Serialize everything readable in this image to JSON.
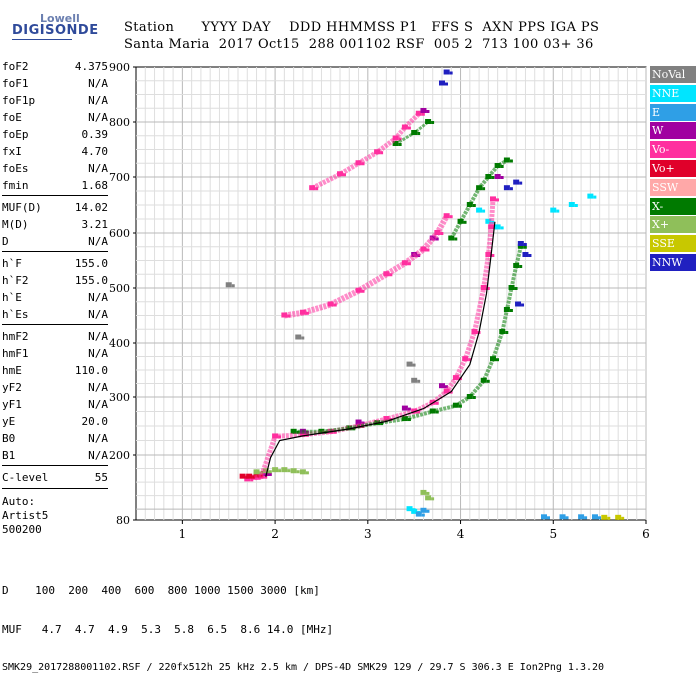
{
  "logo": {
    "line1": "Lowell",
    "line2": "DIGISONDE"
  },
  "header": {
    "line1": "Station      YYYY DAY    DDD HHMMSS P1   FFS S  AXN PPS IGA PS",
    "line2": "Santa Maria  2017 Oct15  288 001102 RSF  005 2  713 100 03+ 36"
  },
  "params": [
    {
      "name": "foF2",
      "value": "4.375"
    },
    {
      "name": "foF1",
      "value": "N/A"
    },
    {
      "name": "foF1p",
      "value": "N/A"
    },
    {
      "name": "foE",
      "value": "N/A"
    },
    {
      "name": "foEp",
      "value": "0.39"
    },
    {
      "name": "fxI",
      "value": "4.70"
    },
    {
      "name": "foEs",
      "value": "N/A"
    },
    {
      "name": "fmin",
      "value": "1.68"
    },
    {
      "name": "MUF(D)",
      "value": "14.02"
    },
    {
      "name": "M(D)",
      "value": "3.21"
    },
    {
      "name": "D",
      "value": "N/A"
    },
    {
      "name": "h`F",
      "value": "155.0"
    },
    {
      "name": "h`F2",
      "value": "155.0"
    },
    {
      "name": "h`E",
      "value": "N/A"
    },
    {
      "name": "h`Es",
      "value": "N/A"
    },
    {
      "name": "hmF2",
      "value": "N/A"
    },
    {
      "name": "hmF1",
      "value": "N/A"
    },
    {
      "name": "hmE",
      "value": "110.0"
    },
    {
      "name": "yF2",
      "value": "N/A"
    },
    {
      "name": "yF1",
      "value": "N/A"
    },
    {
      "name": "yE",
      "value": "20.0"
    },
    {
      "name": "B0",
      "value": "N/A"
    },
    {
      "name": "B1",
      "value": "N/A"
    },
    {
      "name": "C-level",
      "value": "55"
    }
  ],
  "autoscale": {
    "line1": "Auto:",
    "line2": "Artist5",
    "line3": "500200"
  },
  "legend": [
    {
      "label": "NoVal",
      "color": "#808080"
    },
    {
      "label": "NNE",
      "color": "#00e5ff"
    },
    {
      "label": "E",
      "color": "#2f9fe6"
    },
    {
      "label": "W",
      "color": "#a000a0"
    },
    {
      "label": "Vo-",
      "color": "#ff2f9f"
    },
    {
      "label": "Vo+",
      "color": "#e0002a"
    },
    {
      "label": "SSW",
      "color": "#ffa8a8"
    },
    {
      "label": "X-",
      "color": "#007a00"
    },
    {
      "label": "X+",
      "color": "#8fbf5a"
    },
    {
      "label": "SSE",
      "color": "#c8c800"
    },
    {
      "label": "NNW",
      "color": "#2020c0"
    }
  ],
  "footer": {
    "line1": "D    100  200  400  600  800 1000 1500 3000 [km]",
    "line2": "MUF   4.7  4.7  4.9  5.3  5.8  6.5  8.6 14.0 [MHz]",
    "line3": "SMK29_2017288001102.RSF / 220fx512h 25 kHz 2.5 km / DPS-4D SMK29 129 / 29.7 S 306.3 E Ion2Png 1.3.20"
  },
  "chart_data": {
    "type": "scatter",
    "xlim": [
      0.5,
      6
    ],
    "ylim": [
      80,
      900
    ],
    "x_ticks": [
      "1",
      "2",
      "3",
      "4",
      "5",
      "6"
    ],
    "y_ticks": [
      "80",
      "200",
      "300",
      "400",
      "500",
      "600",
      "700",
      "800",
      "900"
    ],
    "grid": true,
    "series": [
      {
        "name": "Vo-",
        "color": "#ff2f9f",
        "points": [
          [
            1.7,
            155
          ],
          [
            1.78,
            158
          ],
          [
            1.85,
            160
          ],
          [
            2.0,
            232
          ],
          [
            2.3,
            235
          ],
          [
            2.6,
            240
          ],
          [
            2.9,
            250
          ],
          [
            3.2,
            262
          ],
          [
            3.5,
            275
          ],
          [
            3.7,
            290
          ],
          [
            3.85,
            310
          ],
          [
            3.95,
            335
          ],
          [
            4.05,
            370
          ],
          [
            4.15,
            420
          ],
          [
            4.25,
            500
          ],
          [
            4.3,
            560
          ],
          [
            4.33,
            610
          ],
          [
            4.35,
            660
          ],
          [
            2.1,
            450
          ],
          [
            2.3,
            455
          ],
          [
            2.6,
            470
          ],
          [
            2.9,
            495
          ],
          [
            3.2,
            525
          ],
          [
            3.4,
            545
          ],
          [
            3.6,
            570
          ],
          [
            3.75,
            600
          ],
          [
            3.85,
            630
          ],
          [
            2.4,
            680
          ],
          [
            2.7,
            705
          ],
          [
            2.9,
            725
          ],
          [
            3.1,
            745
          ],
          [
            3.3,
            770
          ],
          [
            3.4,
            790
          ],
          [
            3.55,
            815
          ]
        ]
      },
      {
        "name": "Vo+",
        "color": "#e0002a",
        "points": [
          [
            1.65,
            160
          ],
          [
            1.72,
            160
          ],
          [
            1.8,
            162
          ],
          [
            1.88,
            165
          ]
        ]
      },
      {
        "name": "W",
        "color": "#a000a0",
        "points": [
          [
            1.9,
            165
          ],
          [
            2.3,
            240
          ],
          [
            2.9,
            256
          ],
          [
            3.4,
            280
          ],
          [
            3.8,
            320
          ],
          [
            3.5,
            560
          ],
          [
            3.7,
            590
          ],
          [
            3.6,
            820
          ],
          [
            4.4,
            700
          ]
        ]
      },
      {
        "name": "X-",
        "color": "#007a00",
        "points": [
          [
            2.2,
            240
          ],
          [
            2.5,
            240
          ],
          [
            2.8,
            246
          ],
          [
            3.1,
            255
          ],
          [
            3.4,
            262
          ],
          [
            3.7,
            275
          ],
          [
            3.95,
            285
          ],
          [
            4.1,
            300
          ],
          [
            4.25,
            330
          ],
          [
            4.35,
            370
          ],
          [
            4.45,
            420
          ],
          [
            4.5,
            460
          ],
          [
            4.55,
            500
          ],
          [
            4.6,
            540
          ],
          [
            4.65,
            575
          ],
          [
            3.9,
            590
          ],
          [
            4.0,
            620
          ],
          [
            4.1,
            650
          ],
          [
            4.2,
            680
          ],
          [
            4.3,
            700
          ],
          [
            4.4,
            720
          ],
          [
            4.5,
            730
          ],
          [
            3.3,
            760
          ],
          [
            3.5,
            780
          ],
          [
            3.65,
            800
          ]
        ]
      },
      {
        "name": "X+",
        "color": "#8fbf5a",
        "points": [
          [
            1.8,
            168
          ],
          [
            1.9,
            170
          ],
          [
            2.0,
            172
          ],
          [
            2.1,
            172
          ],
          [
            2.2,
            170
          ],
          [
            2.3,
            168
          ],
          [
            3.6,
            130
          ],
          [
            3.65,
            120
          ]
        ]
      },
      {
        "name": "NNE",
        "color": "#00e5ff",
        "points": [
          [
            4.2,
            640
          ],
          [
            4.3,
            620
          ],
          [
            4.4,
            610
          ],
          [
            5.0,
            640
          ],
          [
            5.2,
            650
          ],
          [
            5.4,
            665
          ],
          [
            3.45,
            100
          ],
          [
            3.5,
            95
          ]
        ]
      },
      {
        "name": "E",
        "color": "#2f9fe6",
        "points": [
          [
            4.9,
            85
          ],
          [
            5.1,
            85
          ],
          [
            5.3,
            85
          ],
          [
            5.45,
            85
          ],
          [
            3.55,
            90
          ],
          [
            3.6,
            97
          ]
        ]
      },
      {
        "name": "SSE",
        "color": "#c8c800",
        "points": [
          [
            5.55,
            84
          ],
          [
            5.7,
            84
          ]
        ]
      },
      {
        "name": "NNW",
        "color": "#2020c0",
        "points": [
          [
            4.5,
            680
          ],
          [
            4.6,
            690
          ],
          [
            4.65,
            580
          ],
          [
            4.62,
            470
          ],
          [
            4.7,
            560
          ],
          [
            3.8,
            870
          ],
          [
            3.85,
            890
          ]
        ]
      },
      {
        "name": "NoVal",
        "color": "#808080",
        "points": [
          [
            1.5,
            505
          ],
          [
            2.25,
            410
          ],
          [
            3.45,
            360
          ],
          [
            3.5,
            330
          ]
        ]
      }
    ],
    "trace": [
      [
        1.9,
        160
      ],
      [
        1.95,
        195
      ],
      [
        2.05,
        225
      ],
      [
        2.3,
        233
      ],
      [
        2.8,
        245
      ],
      [
        3.2,
        258
      ],
      [
        3.6,
        280
      ],
      [
        3.9,
        310
      ],
      [
        4.1,
        360
      ],
      [
        4.2,
        420
      ],
      [
        4.28,
        490
      ],
      [
        4.33,
        560
      ],
      [
        4.37,
        620
      ]
    ]
  }
}
